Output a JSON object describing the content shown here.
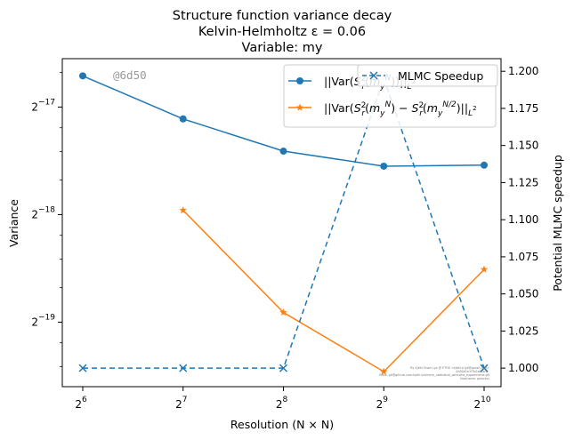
{
  "chart_data": {
    "type": "line",
    "title": [
      "Structure function variance decay",
      "Kelvin-Helmholtz ε = 0.06",
      "Variable: my"
    ],
    "xlabel": "Resolution (N × N)",
    "ylabel_left": "Variance",
    "ylabel_right": "Potential MLMC speedup",
    "x": [
      6,
      7,
      8,
      9,
      10
    ],
    "x_tick_labels": [
      {
        "base": "2",
        "exp": "6"
      },
      {
        "base": "2",
        "exp": "7"
      },
      {
        "base": "2",
        "exp": "8"
      },
      {
        "base": "2",
        "exp": "9"
      },
      {
        "base": "2",
        "exp": "10"
      }
    ],
    "x_scale": "log2",
    "y_left_scale": "log2",
    "y_left_ticks": [
      {
        "base": "2",
        "exp": "−17",
        "value": -17
      },
      {
        "base": "2",
        "exp": "−18",
        "value": -18
      },
      {
        "base": "2",
        "exp": "−19",
        "value": -19
      }
    ],
    "y_left_range_log2": [
      -19.6,
      -16.55
    ],
    "y_right_range": [
      0.9875,
      1.2085
    ],
    "y_right_ticks": [
      "1.000",
      "1.025",
      "1.050",
      "1.075",
      "1.100",
      "1.125",
      "1.150",
      "1.175",
      "1.200"
    ],
    "grid": false,
    "legend_placement": "top-right",
    "series": [
      {
        "name": "||Var(S_r^2(m_y^N))||_{L^2}",
        "axis": "left",
        "color": "#1f77b4",
        "marker": "circle",
        "style": "solid",
        "x": [
          6,
          7,
          8,
          9,
          10
        ],
        "log2_values": [
          -16.71,
          -17.11,
          -17.41,
          -17.55,
          -17.54
        ]
      },
      {
        "name": "||Var(S_r^2(m_y^N)) − S_r^2(m_y^{N/2}))||_{L^2}",
        "axis": "left",
        "color": "#ff7f0e",
        "marker": "star",
        "style": "solid",
        "x": [
          7,
          8,
          9,
          10
        ],
        "log2_values": [
          -17.96,
          -18.91,
          -19.46,
          -18.51
        ]
      },
      {
        "name": "MLMC Speedup",
        "axis": "right",
        "color": "#1f77b4",
        "marker": "x",
        "style": "dashed",
        "x": [
          6,
          7,
          8,
          9,
          10
        ],
        "values": [
          1.0,
          1.0,
          1.0,
          1.195,
          1.0
        ]
      }
    ],
    "legend": {
      "entry1": "||Var(",
      "entry2_a": "||Var(",
      "entry2_b": ")||",
      "entry3": "MLMC Speedup"
    },
    "watermark": "@6d50",
    "footer_note": [
      "By Kjetil Olsen Lye @ ETHZ <kjetil.o.lye@gmail.com>",
      "0d50d1e1f7b2ab6a4...",
      "Repo: git@github.com:kjetil-lye/mlmc_statistical_solutions_experiments.git",
      "Hostname: galactus"
    ]
  }
}
